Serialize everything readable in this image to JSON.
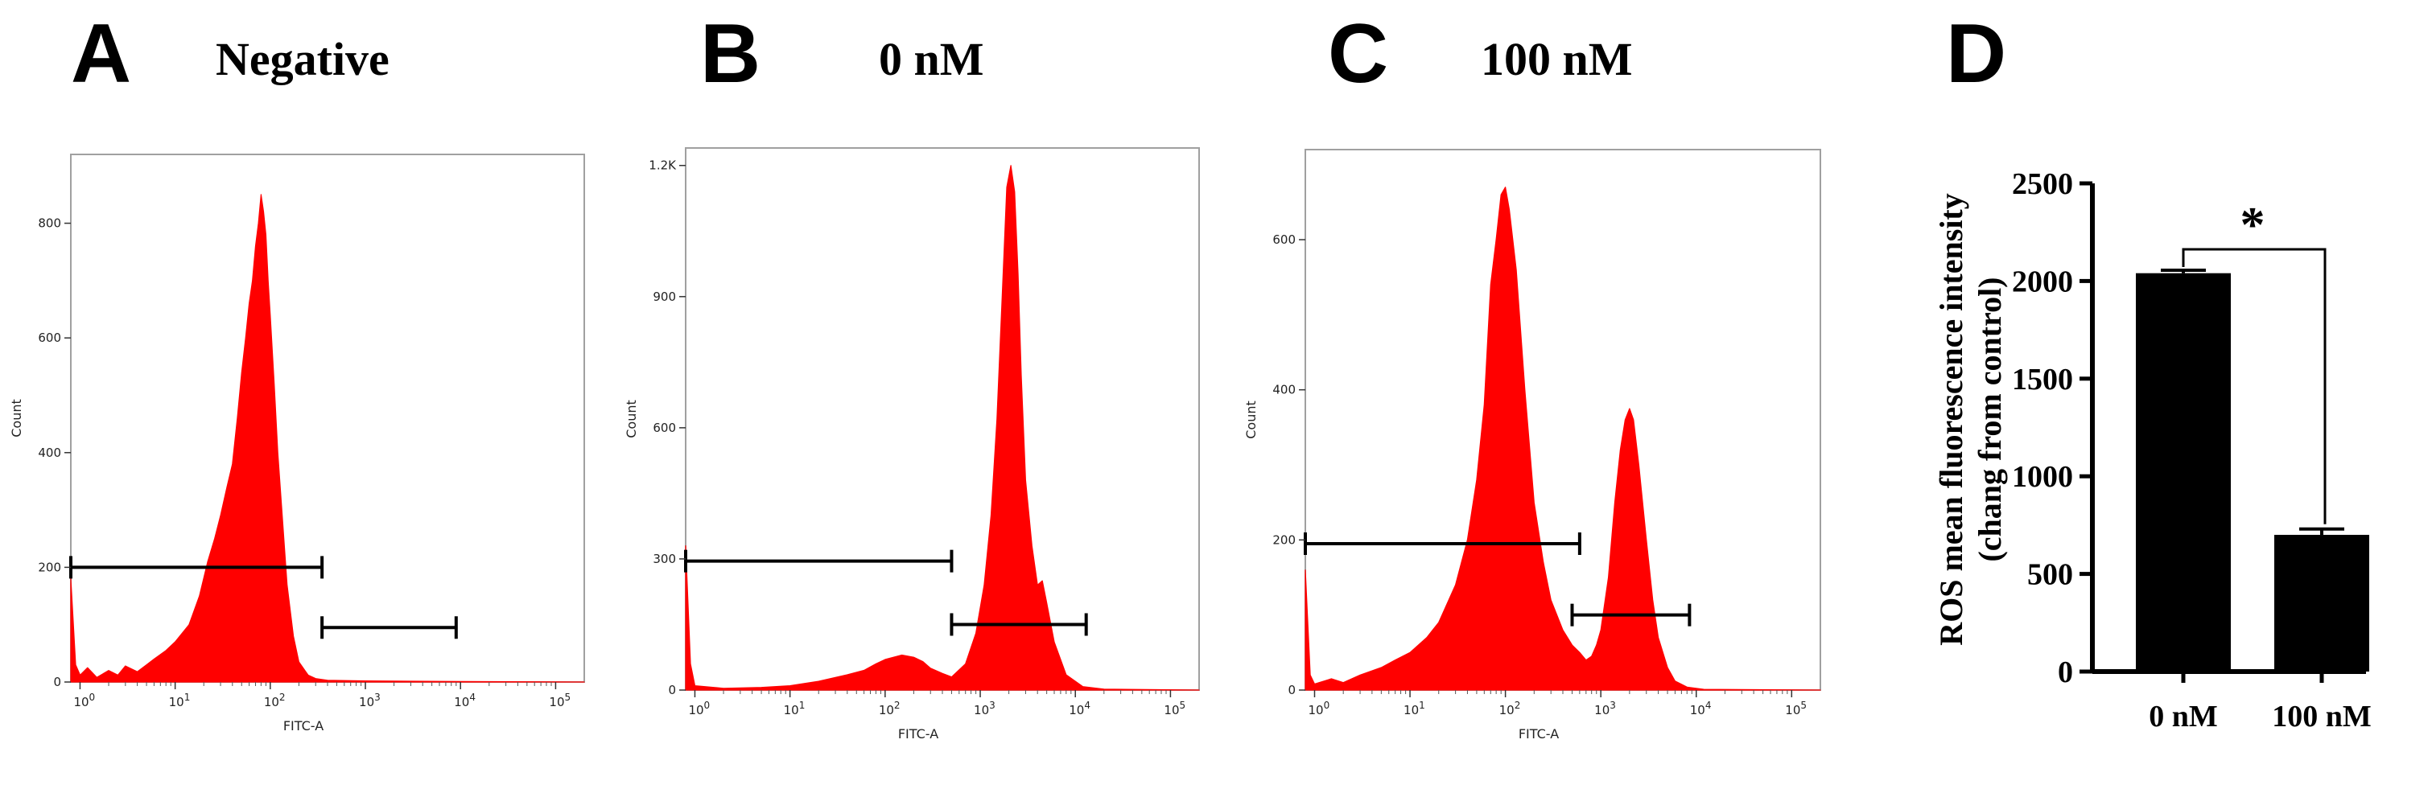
{
  "colors": {
    "histogram": "#ff0000",
    "axis": "#000000",
    "plot_border": "#a0a0a0",
    "bar": "#000000"
  },
  "panels": [
    {
      "letter": "A",
      "title": "Negative"
    },
    {
      "letter": "B",
      "title": "0 nM"
    },
    {
      "letter": "C",
      "title": "100 nM"
    },
    {
      "letter": "D",
      "title": ""
    }
  ],
  "chart_data": [
    {
      "type": "area",
      "panel": "A",
      "title": "Negative",
      "xlabel": "FITC-A",
      "ylabel": "Count",
      "xscale": "log",
      "xlim": [
        0.8,
        200000
      ],
      "ylim": [
        0,
        920
      ],
      "yticks": [
        {
          "value": 0,
          "label": "0"
        },
        {
          "value": 200,
          "label": "200"
        },
        {
          "value": 400,
          "label": "400"
        },
        {
          "value": 600,
          "label": "600"
        },
        {
          "value": 800,
          "label": "800"
        }
      ],
      "xtick_exponents": [
        "0",
        "1",
        "2",
        "3",
        "4",
        "5"
      ],
      "series": [
        {
          "name": "Negative",
          "x": [
            0.8,
            0.9,
            1,
            1.2,
            1.5,
            2,
            2.5,
            3,
            4,
            5,
            6,
            8,
            10,
            14,
            18,
            22,
            26,
            30,
            35,
            40,
            45,
            50,
            55,
            60,
            65,
            70,
            75,
            80,
            85,
            90,
            95,
            100,
            110,
            120,
            135,
            150,
            175,
            200,
            250,
            300,
            400,
            1000,
            10000,
            200000
          ],
          "y": [
            180,
            30,
            12,
            25,
            8,
            20,
            12,
            28,
            18,
            30,
            40,
            55,
            70,
            100,
            150,
            210,
            250,
            290,
            340,
            380,
            460,
            540,
            600,
            660,
            700,
            760,
            800,
            850,
            820,
            780,
            700,
            640,
            520,
            400,
            280,
            170,
            80,
            35,
            12,
            6,
            3,
            2,
            1,
            0
          ]
        }
      ],
      "gates": [
        {
          "from": 0.8,
          "to": 350,
          "y": 200
        },
        {
          "from": 350,
          "to": 9000,
          "y": 95
        }
      ]
    },
    {
      "type": "area",
      "panel": "B",
      "title": "0 nM",
      "xlabel": "FITC-A",
      "ylabel": "Count",
      "xscale": "log",
      "xlim": [
        0.8,
        200000
      ],
      "ylim": [
        0,
        1240
      ],
      "yticks": [
        {
          "value": 0,
          "label": "0"
        },
        {
          "value": 300,
          "label": "300"
        },
        {
          "value": 600,
          "label": "600"
        },
        {
          "value": 900,
          "label": "900"
        },
        {
          "value": 1200,
          "label": "1.2K"
        }
      ],
      "xtick_exponents": [
        "0",
        "1",
        "2",
        "3",
        "4",
        "5"
      ],
      "series": [
        {
          "name": "0 nM",
          "x": [
            0.8,
            0.9,
            1,
            2,
            5,
            10,
            20,
            40,
            60,
            80,
            100,
            150,
            200,
            250,
            300,
            400,
            500,
            700,
            900,
            1100,
            1300,
            1500,
            1700,
            1900,
            2100,
            2300,
            2500,
            2700,
            3000,
            3500,
            4000,
            4500,
            5000,
            6000,
            8000,
            12000,
            20000,
            200000
          ],
          "y": [
            330,
            60,
            10,
            4,
            6,
            10,
            20,
            35,
            45,
            60,
            70,
            80,
            75,
            65,
            50,
            38,
            30,
            60,
            130,
            240,
            400,
            620,
            900,
            1150,
            1200,
            1140,
            950,
            720,
            480,
            330,
            240,
            250,
            200,
            110,
            35,
            8,
            2,
            0
          ]
        }
      ],
      "gates": [
        {
          "from": 0.8,
          "to": 500,
          "y": 295
        },
        {
          "from": 500,
          "to": 13000,
          "y": 150
        }
      ]
    },
    {
      "type": "area",
      "panel": "C",
      "title": "100 nM",
      "xlabel": "FITC-A",
      "ylabel": "Count",
      "xscale": "log",
      "xlim": [
        0.8,
        200000
      ],
      "ylim": [
        0,
        720
      ],
      "yticks": [
        {
          "value": 0,
          "label": "0"
        },
        {
          "value": 200,
          "label": "200"
        },
        {
          "value": 400,
          "label": "400"
        },
        {
          "value": 600,
          "label": "600"
        }
      ],
      "xtick_exponents": [
        "0",
        "1",
        "2",
        "3",
        "4",
        "5"
      ],
      "series": [
        {
          "name": "100 nM",
          "x": [
            0.8,
            0.9,
            1,
            1.5,
            2,
            3,
            5,
            7,
            10,
            15,
            20,
            30,
            40,
            50,
            60,
            70,
            80,
            90,
            100,
            110,
            130,
            160,
            200,
            250,
            300,
            400,
            500,
            600,
            700,
            800,
            900,
            1000,
            1200,
            1400,
            1600,
            1800,
            2000,
            2200,
            2500,
            3000,
            3500,
            4000,
            5000,
            6000,
            8000,
            12000,
            200000
          ],
          "y": [
            160,
            20,
            8,
            15,
            10,
            20,
            30,
            40,
            50,
            70,
            90,
            140,
            200,
            280,
            380,
            540,
            600,
            660,
            670,
            640,
            560,
            400,
            250,
            170,
            120,
            80,
            60,
            50,
            40,
            45,
            60,
            80,
            150,
            250,
            320,
            360,
            375,
            360,
            300,
            200,
            120,
            70,
            30,
            12,
            4,
            1,
            0
          ]
        }
      ],
      "gates": [
        {
          "from": 0.8,
          "to": 600,
          "y": 195
        },
        {
          "from": 500,
          "to": 8500,
          "y": 100
        }
      ]
    },
    {
      "type": "bar",
      "panel": "D",
      "title": "",
      "categories": [
        "0 nM",
        "100 nM"
      ],
      "values": [
        2040,
        700
      ],
      "errors": [
        15,
        30
      ],
      "ylabel_lines": [
        "ROS mean fluorescence intensity",
        "(chang from control)"
      ],
      "ylim": [
        0,
        2500
      ],
      "yticks": [
        {
          "value": 0,
          "label": "0"
        },
        {
          "value": 500,
          "label": "500"
        },
        {
          "value": 1000,
          "label": "1000"
        },
        {
          "value": 1500,
          "label": "1500"
        },
        {
          "value": 2000,
          "label": "2000"
        },
        {
          "value": 2500,
          "label": "2500"
        }
      ],
      "significance": "*"
    }
  ]
}
